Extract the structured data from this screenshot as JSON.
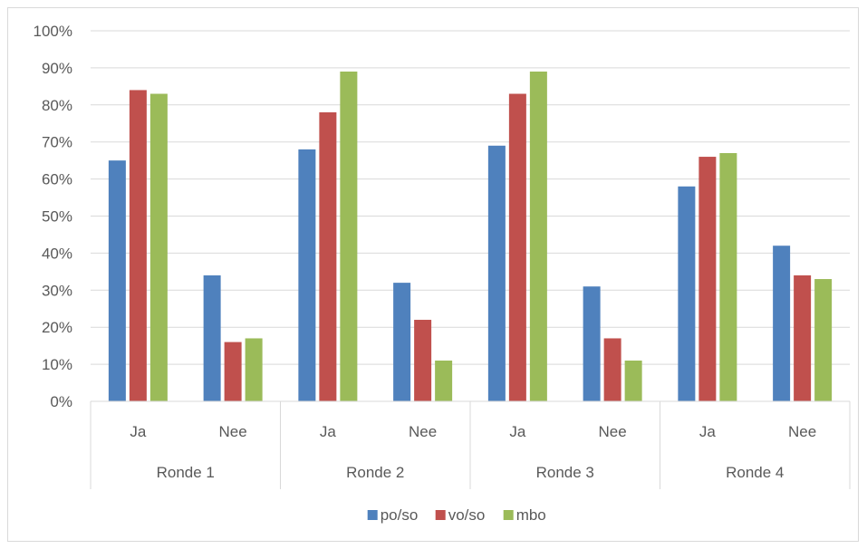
{
  "chart_data": {
    "type": "bar",
    "groups": [
      {
        "label": "Ronde 1",
        "categories": [
          "Ja",
          "Nee"
        ]
      },
      {
        "label": "Ronde 2",
        "categories": [
          "Ja",
          "Nee"
        ]
      },
      {
        "label": "Ronde 3",
        "categories": [
          "Ja",
          "Nee"
        ]
      },
      {
        "label": "Ronde 4",
        "categories": [
          "Ja",
          "Nee"
        ]
      }
    ],
    "series": [
      {
        "name": "po/so",
        "color": "#4F81BD",
        "values": [
          65,
          34,
          68,
          32,
          69,
          31,
          58,
          42
        ]
      },
      {
        "name": "vo/so",
        "color": "#C0504D",
        "values": [
          84,
          16,
          78,
          22,
          83,
          17,
          66,
          34
        ]
      },
      {
        "name": "mbo",
        "color": "#9BBB59",
        "values": [
          83,
          17,
          89,
          11,
          89,
          11,
          67,
          33
        ]
      }
    ],
    "y_ticks": [
      "0%",
      "10%",
      "20%",
      "30%",
      "40%",
      "50%",
      "60%",
      "70%",
      "80%",
      "90%",
      "100%"
    ],
    "ylim": [
      0,
      100
    ],
    "grid": true,
    "legend": "bottom"
  }
}
